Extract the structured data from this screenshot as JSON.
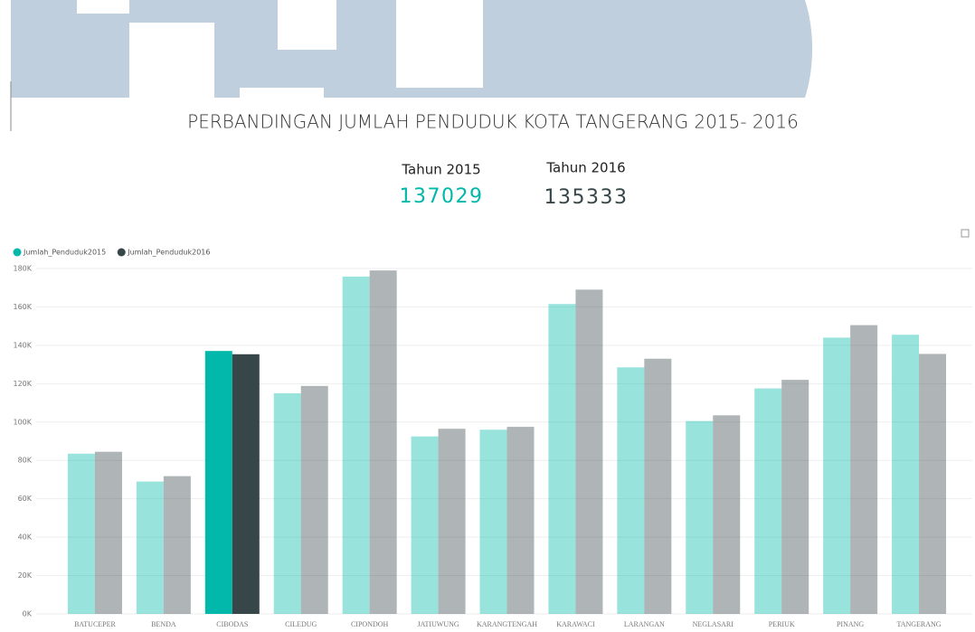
{
  "title": "PERBANDINGAN JUMLAH PENDUDUK KOTA TANGERANG 2015- 2016",
  "cards": [
    {
      "label": "Tahun 2015",
      "value": 137029,
      "color": "#01b8aa"
    },
    {
      "label": "Tahun 2016",
      "value": 135333,
      "color": "#374649"
    }
  ],
  "chart_data": {
    "type": "bar",
    "categories": [
      "BATUCEPER",
      "BENDA",
      "CIBODAS",
      "CILEDUG",
      "CIPONDOH",
      "JATIUWUNG",
      "KARANGTENGAH",
      "KARAWACI",
      "LARANGAN",
      "NEGLASARI",
      "PERIUK",
      "PINANG",
      "TANGERANG"
    ],
    "series": [
      {
        "name": "Jumlah_Penduduk2015",
        "color": "#01b8aa",
        "values": [
          83500,
          69000,
          137029,
          115000,
          175800,
          92500,
          96000,
          161500,
          128500,
          100500,
          117500,
          144000,
          145500
        ]
      },
      {
        "name": "Jumlah_Penduduk2016",
        "color": "#374649",
        "values": [
          84500,
          71800,
          135333,
          118800,
          179000,
          96500,
          97500,
          169000,
          133000,
          103500,
          122000,
          150500,
          135500
        ]
      }
    ],
    "highlight": "CIBODAS",
    "ylim": [
      0,
      180000
    ],
    "yticks": [
      {
        "value": 0,
        "label": "0K"
      },
      {
        "value": 20000,
        "label": "20K"
      },
      {
        "value": 40000,
        "label": "40K"
      },
      {
        "value": 60000,
        "label": "60K"
      },
      {
        "value": 80000,
        "label": "80K"
      },
      {
        "value": 100000,
        "label": "100K"
      },
      {
        "value": 120000,
        "label": "120K"
      },
      {
        "value": 140000,
        "label": "140K"
      },
      {
        "value": 160000,
        "label": "160K"
      },
      {
        "value": 180000,
        "label": "180K"
      }
    ],
    "grid": true,
    "legend": "top-left"
  }
}
